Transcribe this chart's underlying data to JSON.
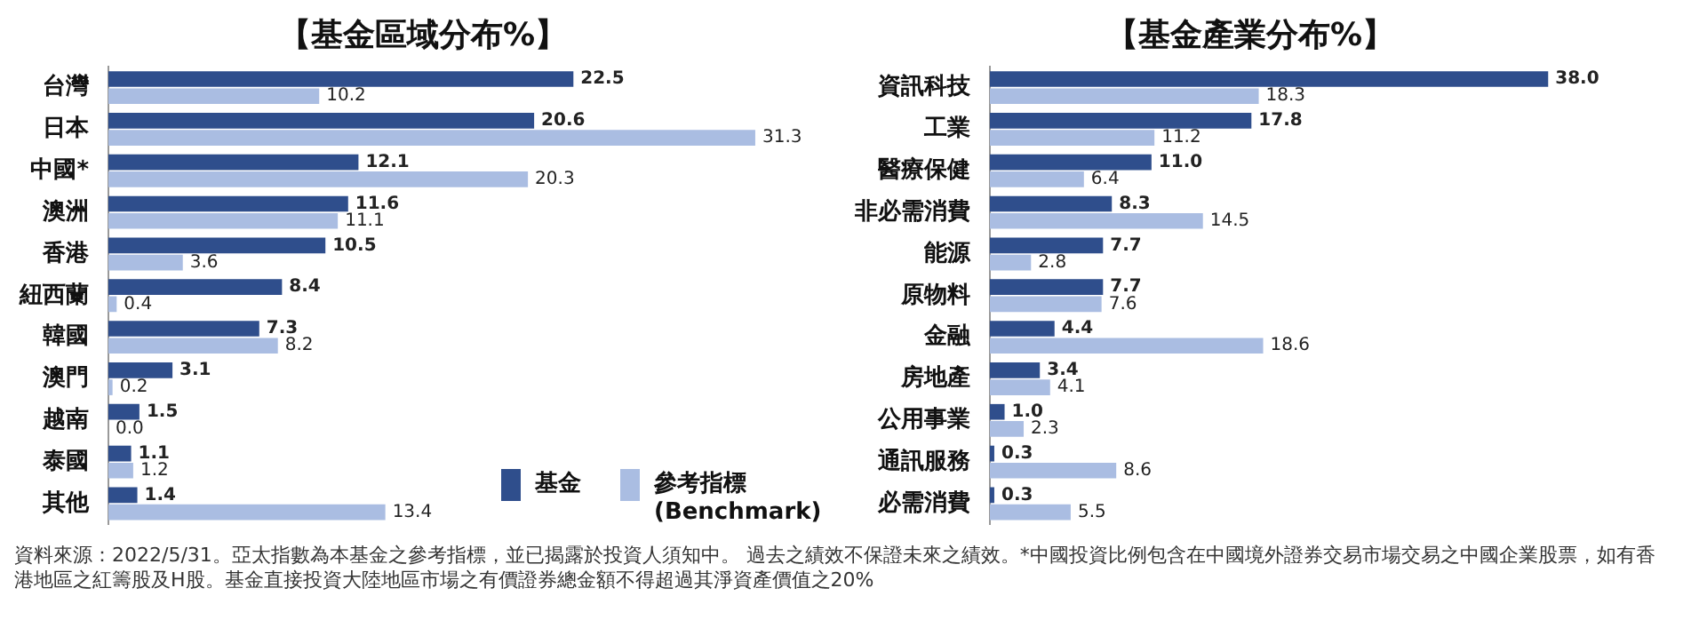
{
  "chart_data": [
    {
      "type": "bar",
      "orientation": "horizontal",
      "title": "【基金區域分布%】",
      "legend": "bottom right",
      "categories": [
        "台灣",
        "日本",
        "中國*",
        "澳洲",
        "香港",
        "紐西蘭",
        "韓國",
        "澳門",
        "越南",
        "泰國",
        "其他"
      ],
      "series": [
        {
          "name": "基金",
          "color": "#2f4e8c",
          "values": [
            22.5,
            20.6,
            12.1,
            11.6,
            10.5,
            8.4,
            7.3,
            3.1,
            1.5,
            1.1,
            1.4
          ],
          "value_labels": [
            "22.5",
            "20.6",
            "12.1",
            "11.6",
            "10.5",
            "8.4",
            "7.3",
            "3.1",
            "1.5",
            "1.1",
            "1.4"
          ]
        },
        {
          "name": "參考指標 (Benchmark)",
          "color": "#aabde2",
          "values": [
            10.2,
            31.3,
            20.3,
            11.1,
            3.6,
            0.4,
            8.2,
            0.2,
            0.0,
            1.2,
            13.4
          ],
          "value_labels": [
            "10.2",
            "31.3",
            "20.3",
            "11.1",
            "3.6",
            "0.4",
            "8.2",
            "0.2",
            "0.0",
            "1.2",
            "13.4"
          ]
        }
      ],
      "annotations": [
        "資料來源：2022/5/31。亞太指數為本基金之參考指標，並已揭露於投資人須知中。 過去之績效不保證未來之績效。*中國投資比例包含在中國境外證券交易市場交易之中國企業股票，如有香港地區之紅籌股及H股。基金直接投資大陸地區市場之有價證券總金額不得超過其淨資產價值之20%"
      ]
    },
    {
      "type": "bar",
      "orientation": "horizontal",
      "title": "【基金產業分布%】",
      "categories": [
        "資訊科技",
        "工業",
        "醫療保健",
        "非必需消費",
        "能源",
        "原物料",
        "金融",
        "房地產",
        "公用事業",
        "通訊服務",
        "必需消費"
      ],
      "series": [
        {
          "color": "#2f4e8c",
          "values": [
            38.0,
            17.8,
            11.0,
            8.3,
            7.7,
            7.7,
            4.4,
            3.4,
            1.0,
            0.3,
            0.3
          ],
          "value_labels": [
            "38.0",
            "17.8",
            "11.0",
            "8.3",
            "7.7",
            "7.7",
            "4.4",
            "3.4",
            "1.0",
            "0.3",
            "0.3"
          ]
        },
        {
          "color": "#aabde2",
          "values": [
            18.3,
            11.2,
            6.4,
            14.5,
            2.8,
            7.6,
            18.6,
            4.1,
            2.3,
            8.6,
            5.5
          ],
          "value_labels": [
            "18.3",
            "11.2",
            "6.4",
            "14.5",
            "2.8",
            "7.6",
            "18.6",
            "4.1",
            "2.3",
            "8.6",
            "5.5"
          ]
        }
      ]
    }
  ]
}
